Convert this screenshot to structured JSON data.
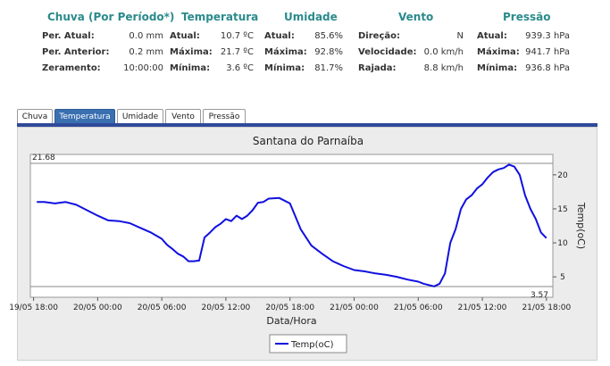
{
  "stats": {
    "groups": [
      {
        "title": "Chuva (Por Período*)",
        "rows": [
          {
            "label": "Per. Atual:",
            "value": "0.0 mm"
          },
          {
            "label": "Per. Anterior:",
            "value": "0.2 mm"
          },
          {
            "label": "Zeramento:",
            "value": "10:00:00"
          }
        ]
      },
      {
        "title": "Temperatura",
        "rows": [
          {
            "label": "Atual:",
            "value": "10.7 ºC"
          },
          {
            "label": "Máxima:",
            "value": "21.7 ºC"
          },
          {
            "label": "Mínima:",
            "value": "3.6 ºC"
          }
        ]
      },
      {
        "title": "Umidade",
        "rows": [
          {
            "label": "Atual:",
            "value": "85.6%"
          },
          {
            "label": "Máxima:",
            "value": "92.8%"
          },
          {
            "label": "Mínima:",
            "value": "81.7%"
          }
        ]
      },
      {
        "title": "Vento",
        "rows": [
          {
            "label": "Direção:",
            "value": "N"
          },
          {
            "label": "Velocidade:",
            "value": "0.0 km/h"
          },
          {
            "label": "Rajada:",
            "value": "8.8 km/h"
          }
        ]
      },
      {
        "title": "Pressão",
        "rows": [
          {
            "label": "Atual:",
            "value": "939.3 hPa"
          },
          {
            "label": "Máxima:",
            "value": "941.7 hPa"
          },
          {
            "label": "Mínima:",
            "value": "936.8 hPa"
          }
        ]
      }
    ]
  },
  "tabs": [
    {
      "label": "Chuva",
      "active": false
    },
    {
      "label": "Temperatura",
      "active": true
    },
    {
      "label": "Umidade",
      "active": false
    },
    {
      "label": "Vento",
      "active": false
    },
    {
      "label": "Pressão",
      "active": false
    }
  ],
  "colors": {
    "series": "#1010e0",
    "tab_active": "#3a6fb0",
    "title_teal": "#2a8a8c"
  },
  "chart_data": {
    "type": "line",
    "title": "Santana do Parnaíba",
    "xlabel": "Data/Hora",
    "ylabel": "Temp(oC)",
    "x_ticks": [
      "19/05 18:00",
      "20/05 00:00",
      "20/05 06:00",
      "20/05 12:00",
      "20/05 18:00",
      "21/05 00:00",
      "21/05 06:00",
      "21/05 12:00",
      "21/05 18:00"
    ],
    "y_ticks": [
      5,
      10,
      15,
      20
    ],
    "ylim": [
      2.0,
      23.0
    ],
    "xlim_hours": [
      -0.3,
      48.6
    ],
    "max_line": {
      "value": 21.68,
      "label": "21.68"
    },
    "min_line": {
      "value": 3.57,
      "label": "3.57"
    },
    "legend": {
      "position": "bottom-center"
    },
    "series": [
      {
        "name": "Temp(oC)",
        "x_hours": [
          0.3,
          1.0,
          2.0,
          3.0,
          4.0,
          5.0,
          6.0,
          7.0,
          8.0,
          9.0,
          10.0,
          11.0,
          12.0,
          12.5,
          13.0,
          13.5,
          14.0,
          14.5,
          15.0,
          15.5,
          16.0,
          16.5,
          17.0,
          17.5,
          18.0,
          18.5,
          19.0,
          19.5,
          20.0,
          20.5,
          21.0,
          21.5,
          22.0,
          23.0,
          24.0,
          25.0,
          26.0,
          27.0,
          28.0,
          29.0,
          30.0,
          31.0,
          32.0,
          33.0,
          34.0,
          35.0,
          36.0,
          36.5,
          37.0,
          37.5,
          38.0,
          38.5,
          39.0,
          39.5,
          40.0,
          40.5,
          41.0,
          41.5,
          42.0,
          42.5,
          43.0,
          43.5,
          44.0,
          44.5,
          45.0,
          45.5,
          46.0,
          46.5,
          47.0,
          47.5,
          48.0
        ],
        "values": [
          16.0,
          16.0,
          15.8,
          16.0,
          15.6,
          14.8,
          14.0,
          13.3,
          13.2,
          12.9,
          12.2,
          11.5,
          10.6,
          9.7,
          9.1,
          8.4,
          8.0,
          7.3,
          7.3,
          7.4,
          10.8,
          11.5,
          12.3,
          12.8,
          13.5,
          13.2,
          14.0,
          13.5,
          14.0,
          14.8,
          15.9,
          16.0,
          16.5,
          16.6,
          15.8,
          12.0,
          9.6,
          8.4,
          7.3,
          6.6,
          6.0,
          5.8,
          5.5,
          5.3,
          5.0,
          4.6,
          4.3,
          4.0,
          3.8,
          3.6,
          4.0,
          5.5,
          10.0,
          12.0,
          15.0,
          16.4,
          17.0,
          18.0,
          18.6,
          19.6,
          20.4,
          20.8,
          21.0,
          21.5,
          21.2,
          20.0,
          17.0,
          15.0,
          13.5,
          11.5,
          10.7
        ]
      }
    ]
  }
}
